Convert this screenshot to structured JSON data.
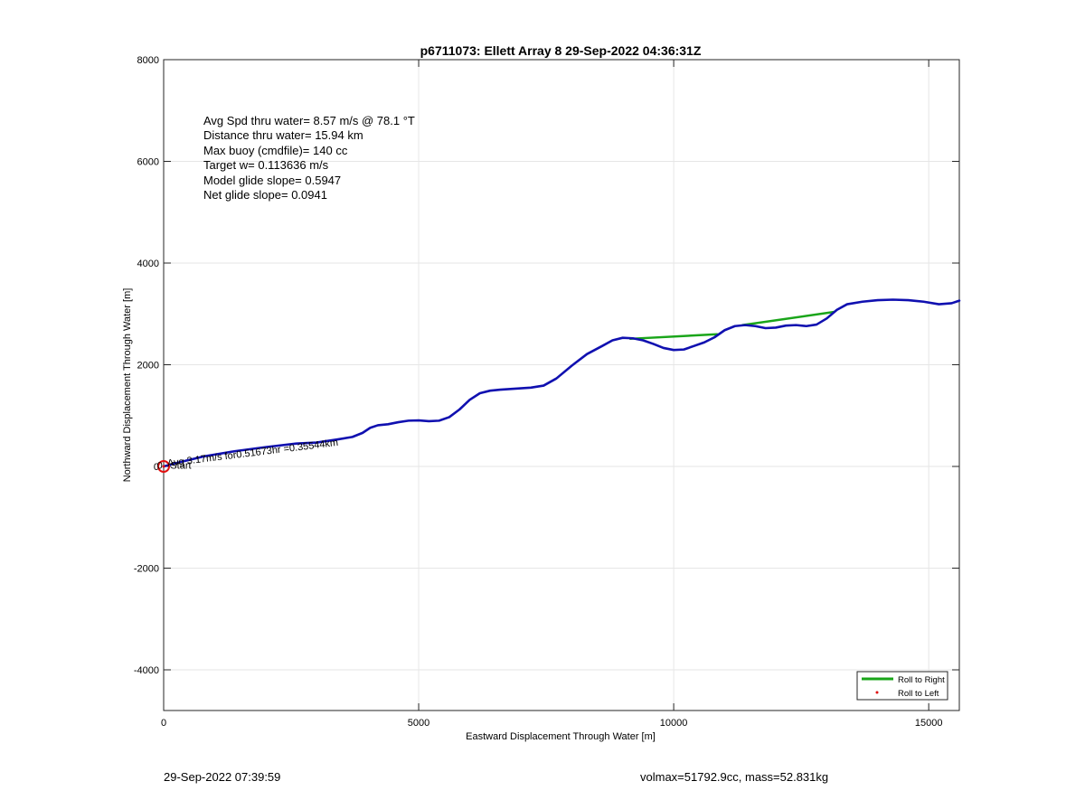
{
  "chart_data": {
    "type": "line",
    "title": "p6711073: Ellett Array 8 29-Sep-2022 04:36:31Z",
    "xlabel": "Eastward Displacement Through Water [m]",
    "ylabel": "Northward Displacement Through Water [m]",
    "xlim": [
      0,
      15600
    ],
    "ylim": [
      -4800,
      8000
    ],
    "xticks": [
      0,
      5000,
      10000,
      15000
    ],
    "yticks": [
      -4000,
      -2000,
      0,
      2000,
      4000,
      6000,
      8000
    ],
    "grid": true,
    "legend": {
      "placement": "bottom-right",
      "entries": [
        "Roll to Right",
        "Roll to Left"
      ]
    },
    "colors": {
      "track": "#1010b0",
      "roll_right": "#1aa51a",
      "roll_left": "#e01010",
      "grid": "#e6e6e6"
    },
    "series": [
      {
        "name": "Roll to Right",
        "segments": [
          [
            [
              9150,
              2510
            ],
            [
              10850,
              2600
            ]
          ],
          [
            [
              11350,
              2780
            ],
            [
              13150,
              3040
            ]
          ]
        ]
      },
      {
        "name": "Roll to Left",
        "points": [
          [
            0,
            0
          ]
        ]
      }
    ],
    "track": [
      [
        0,
        0
      ],
      [
        300,
        80
      ],
      [
        800,
        200
      ],
      [
        1400,
        300
      ],
      [
        2000,
        380
      ],
      [
        2600,
        450
      ],
      [
        3000,
        470
      ],
      [
        3400,
        530
      ],
      [
        3700,
        580
      ],
      [
        3900,
        660
      ],
      [
        4050,
        760
      ],
      [
        4200,
        810
      ],
      [
        4400,
        830
      ],
      [
        4600,
        870
      ],
      [
        4800,
        900
      ],
      [
        5000,
        905
      ],
      [
        5200,
        890
      ],
      [
        5400,
        900
      ],
      [
        5600,
        970
      ],
      [
        5800,
        1120
      ],
      [
        6000,
        1310
      ],
      [
        6200,
        1440
      ],
      [
        6400,
        1490
      ],
      [
        6600,
        1510
      ],
      [
        6900,
        1530
      ],
      [
        7200,
        1550
      ],
      [
        7450,
        1590
      ],
      [
        7700,
        1730
      ],
      [
        8000,
        1980
      ],
      [
        8300,
        2210
      ],
      [
        8600,
        2370
      ],
      [
        8800,
        2480
      ],
      [
        9000,
        2530
      ],
      [
        9200,
        2520
      ],
      [
        9400,
        2480
      ],
      [
        9600,
        2410
      ],
      [
        9800,
        2330
      ],
      [
        10000,
        2290
      ],
      [
        10200,
        2300
      ],
      [
        10400,
        2370
      ],
      [
        10600,
        2440
      ],
      [
        10800,
        2540
      ],
      [
        11000,
        2680
      ],
      [
        11200,
        2760
      ],
      [
        11400,
        2780
      ],
      [
        11600,
        2760
      ],
      [
        11800,
        2720
      ],
      [
        12000,
        2730
      ],
      [
        12200,
        2770
      ],
      [
        12400,
        2780
      ],
      [
        12600,
        2760
      ],
      [
        12800,
        2790
      ],
      [
        13000,
        2910
      ],
      [
        13200,
        3080
      ],
      [
        13400,
        3190
      ],
      [
        13700,
        3240
      ],
      [
        14000,
        3270
      ],
      [
        14300,
        3280
      ],
      [
        14600,
        3270
      ],
      [
        14900,
        3240
      ],
      [
        15200,
        3190
      ],
      [
        15450,
        3210
      ],
      [
        15600,
        3260
      ]
    ],
    "annotations": [
      {
        "text": "Avg 3.17m/s for0.51673hr =0.35544km",
        "x": 80,
        "y": 0,
        "angle_deg": -7
      },
      {
        "text": "Start",
        "x": 130,
        "y": -40
      },
      {
        "text": "0",
        "x": -130,
        "y": -40
      }
    ]
  },
  "stats": {
    "line1": "Avg Spd thru water=  8.57 m/s @  78.1 °T",
    "line2": "Distance thru water= 15.94 km",
    "line3": "Max buoy (cmdfile)= 140 cc",
    "line4": "Target w= 0.113636 m/s",
    "line5": "Model glide slope= 0.5947",
    "line6": "Net glide slope= 0.0941"
  },
  "footer": {
    "left": "29-Sep-2022 07:39:59",
    "right": "volmax=51792.9cc, mass=52.831kg"
  }
}
